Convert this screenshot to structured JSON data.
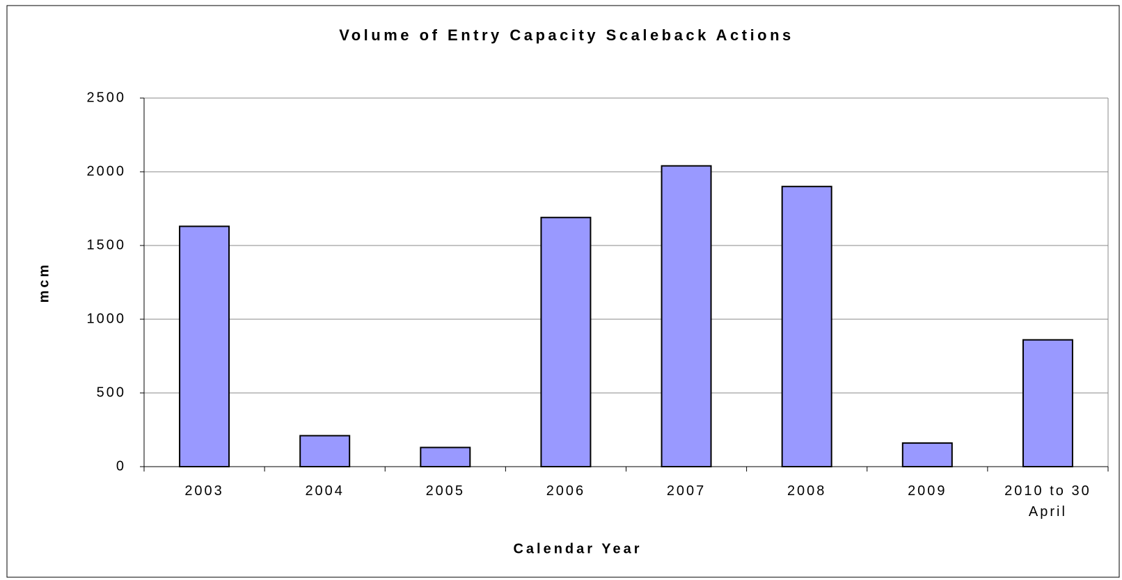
{
  "chart_data": {
    "type": "bar",
    "title": "Volume of Entry Capacity Scaleback Actions",
    "x_label": "Calendar Year",
    "y_label": "mcm",
    "categories": [
      "2003",
      "2004",
      "2005",
      "2006",
      "2007",
      "2008",
      "2009",
      "2010 to 30 April"
    ],
    "values": [
      1630,
      210,
      130,
      1690,
      2040,
      1900,
      160,
      860
    ],
    "color": "#9999ff",
    "ylim": [
      0,
      2500
    ],
    "yticks": [
      0,
      500,
      1000,
      1500,
      2000,
      2500
    ],
    "grid": true
  }
}
